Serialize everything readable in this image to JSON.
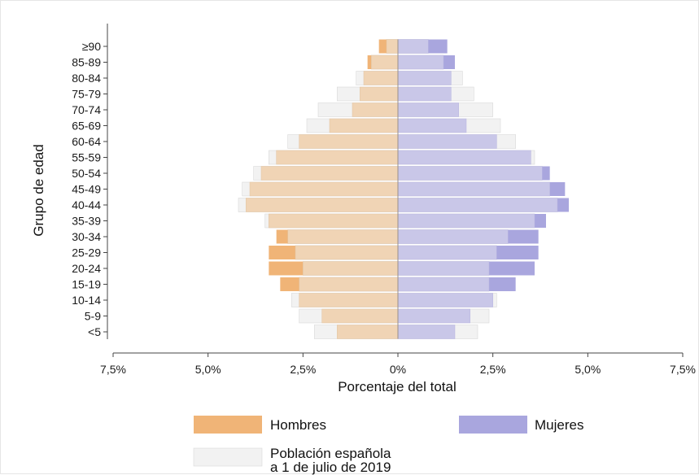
{
  "colors": {
    "hombres": "#f0b477",
    "hombres_inner": "#f0d4b5",
    "mujeres": "#a9a6de",
    "mujeres_inner": "#c9c7e8",
    "poblacion": "#f2f2f2",
    "poblacion_edge": "#d9d9d9",
    "axis": "#444444"
  },
  "chart_data": {
    "type": "bar",
    "orientation": "horizontal-pyramid",
    "xlabel": "Porcentaje del total",
    "ylabel": "Grupo de edad",
    "xlim": [
      -7.5,
      7.5
    ],
    "xticks": [
      -7.5,
      -5.0,
      -2.5,
      0,
      2.5,
      5.0,
      7.5
    ],
    "xtick_labels": [
      "7,5%",
      "5,0%",
      "2,5%",
      "0%",
      "2,5%",
      "5,0%",
      "7,5%"
    ],
    "categories": [
      "<5",
      "5-9",
      "10-14",
      "15-19",
      "20-24",
      "25-29",
      "30-34",
      "35-39",
      "40-44",
      "45-49",
      "50-54",
      "55-59",
      "60-64",
      "65-69",
      "70-74",
      "75-79",
      "80-84",
      "85-89",
      "≥90"
    ],
    "series": [
      {
        "name": "Hombres",
        "values": [
          1.6,
          2.0,
          2.6,
          3.1,
          3.4,
          3.4,
          3.2,
          3.4,
          4.0,
          3.9,
          3.6,
          3.2,
          2.6,
          1.8,
          1.2,
          1.0,
          0.9,
          0.8,
          0.5
        ]
      },
      {
        "name": "Mujeres",
        "values": [
          1.5,
          1.9,
          2.5,
          3.1,
          3.6,
          3.7,
          3.7,
          3.9,
          4.5,
          4.4,
          4.0,
          3.5,
          2.6,
          1.8,
          1.6,
          1.4,
          1.4,
          1.5,
          1.3
        ]
      },
      {
        "name": "Población española a 1 de julio de 2019",
        "side": "both",
        "left_values": [
          2.2,
          2.6,
          2.8,
          2.6,
          2.5,
          2.7,
          2.9,
          3.5,
          4.2,
          4.1,
          3.8,
          3.4,
          2.9,
          2.4,
          2.1,
          1.6,
          1.1,
          0.7,
          0.3
        ],
        "right_values": [
          2.1,
          2.4,
          2.6,
          2.4,
          2.4,
          2.6,
          2.9,
          3.6,
          4.2,
          4.0,
          3.8,
          3.6,
          3.1,
          2.7,
          2.5,
          2.0,
          1.7,
          1.2,
          0.8
        ]
      }
    ],
    "legend": [
      "Hombres",
      "Mujeres",
      "Población española a 1 de julio de 2019"
    ],
    "legend_position": "bottom",
    "grid": false
  },
  "legend": {
    "hombres": "Hombres",
    "mujeres": "Mujeres",
    "poblacion_line1": "Población española",
    "poblacion_line2": "a 1 de julio de 2019"
  }
}
